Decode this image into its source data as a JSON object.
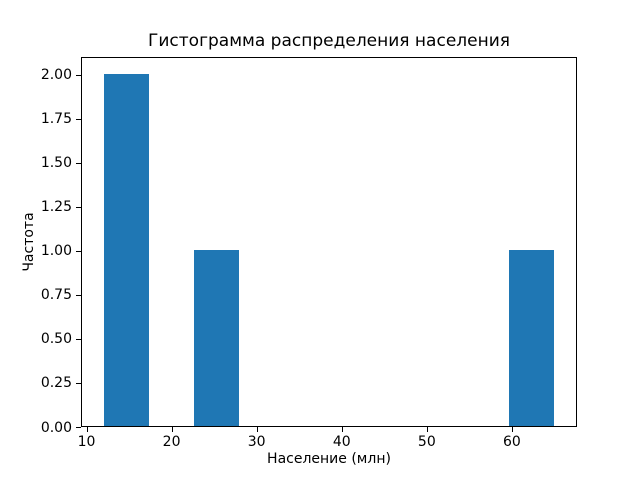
{
  "chart_data": {
    "type": "bar",
    "subtype": "histogram",
    "title": "Гистограмма распределения населения",
    "xlabel": "Население (млн)",
    "ylabel": "Частота",
    "bar_color": "#1f77b4",
    "background_color": "#ffffff",
    "axis_color": "#000000",
    "grid": false,
    "legend": null,
    "xlim": [
      9.35,
      67.65
    ],
    "ylim": [
      0,
      2.1
    ],
    "bin_width": 5.3,
    "bars": [
      {
        "x0": 12.0,
        "x1": 17.3,
        "count": 2
      },
      {
        "x0": 22.6,
        "x1": 27.9,
        "count": 1
      },
      {
        "x0": 59.7,
        "x1": 65.0,
        "count": 1
      }
    ],
    "xticks": [
      {
        "value": 10,
        "label": "10"
      },
      {
        "value": 20,
        "label": "20"
      },
      {
        "value": 30,
        "label": "30"
      },
      {
        "value": 40,
        "label": "40"
      },
      {
        "value": 50,
        "label": "50"
      },
      {
        "value": 60,
        "label": "60"
      }
    ],
    "yticks": [
      {
        "value": 0.0,
        "label": "0.00"
      },
      {
        "value": 0.25,
        "label": "0.25"
      },
      {
        "value": 0.5,
        "label": "0.50"
      },
      {
        "value": 0.75,
        "label": "0.75"
      },
      {
        "value": 1.0,
        "label": "1.00"
      },
      {
        "value": 1.25,
        "label": "1.25"
      },
      {
        "value": 1.5,
        "label": "1.50"
      },
      {
        "value": 1.75,
        "label": "1.75"
      },
      {
        "value": 2.0,
        "label": "2.00"
      }
    ]
  }
}
